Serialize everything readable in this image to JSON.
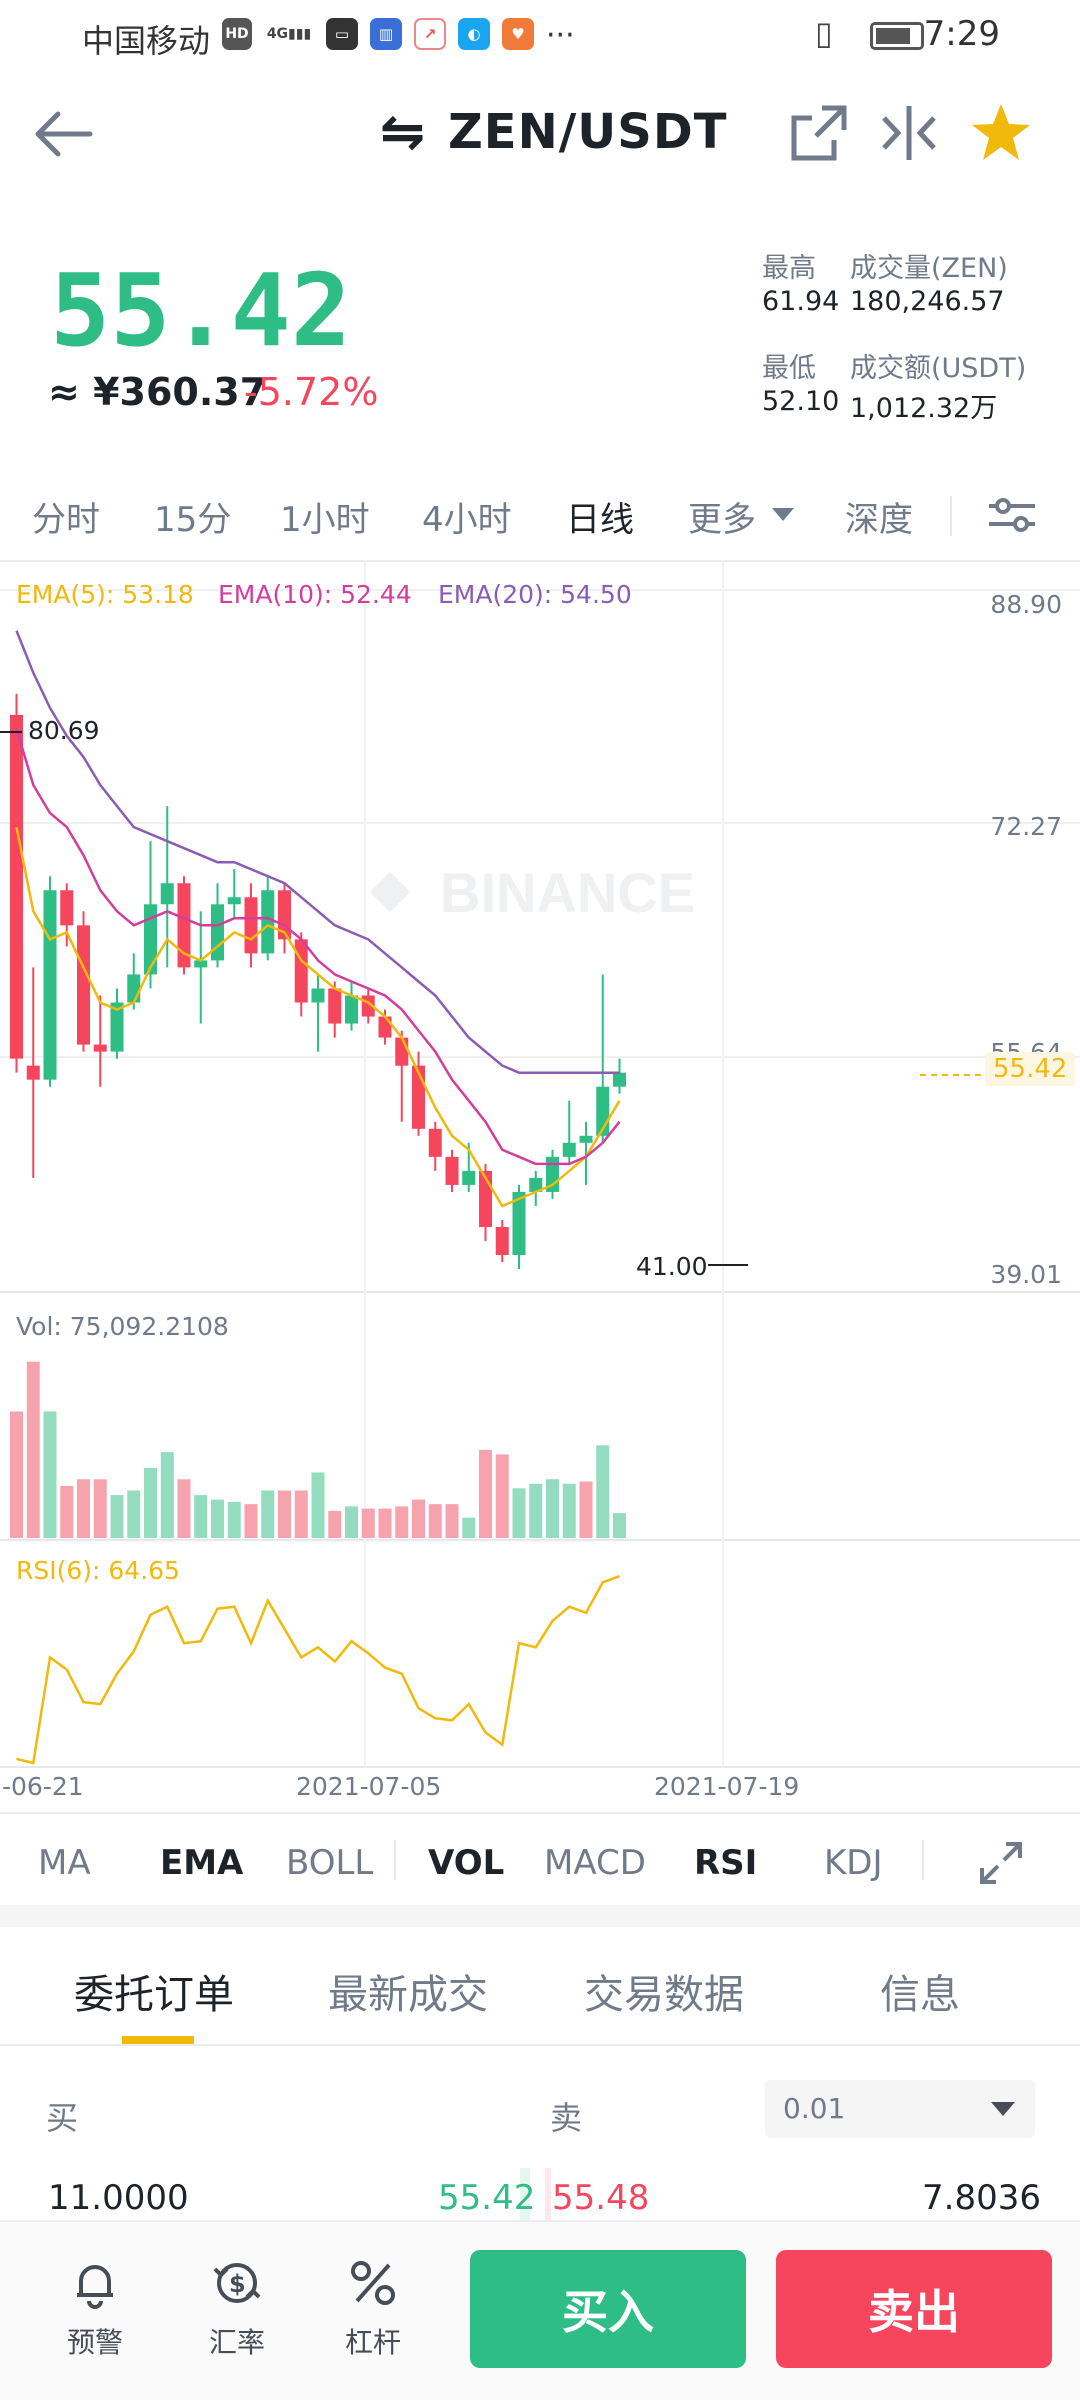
{
  "status_bar": {
    "carrier": "中国移动",
    "time": "7:29",
    "ellipsis": "···"
  },
  "header": {
    "title": "ZEN/USDT",
    "swap_glyph": "⇋"
  },
  "ticker": {
    "last_price": "55.42",
    "fiat_price": "≈ ¥360.37",
    "change_pct": "-5.72%",
    "high_label": "最高",
    "high_value": "61.94",
    "volume_label": "成交量(ZEN)",
    "volume_value": "180,246.57",
    "low_label": "最低",
    "low_value": "52.10",
    "turnover_label": "成交额(USDT)",
    "turnover_value": "1,012.32万"
  },
  "timeframes": {
    "t1": "分时",
    "t2": "15分",
    "t3": "1小时",
    "t4": "4小时",
    "t5": "日线",
    "t6": "更多",
    "t7": "深度"
  },
  "chart_labels": {
    "ema5": "EMA(5): 53.18",
    "ema10": "EMA(10): 52.44",
    "ema20": "EMA(20): 54.50",
    "y_top": "88.90",
    "y_mid": "72.27",
    "y_partial": "55.64",
    "y_bottom": "39.01",
    "current_price": "55.42",
    "max_marker": "80.69",
    "min_marker": "41.00",
    "watermark": "BINANCE",
    "vol_label": "Vol: 75,092.2108",
    "rsi_label": "RSI(6): 64.65",
    "date1": "-06-21",
    "date2": "2021-07-05",
    "date3": "2021-07-19"
  },
  "chart_data": {
    "type": "candlestick",
    "price_axis": {
      "min": 39.01,
      "max": 88.9,
      "ticks": [
        88.9,
        72.27,
        55.64,
        39.01
      ]
    },
    "x_labels": [
      "-06-21",
      "2021-07-05",
      "2021-07-19"
    ],
    "candles": [
      {
        "o": 80.0,
        "c": 55.5,
        "h": 81.5,
        "l": 54.5
      },
      {
        "o": 55.0,
        "c": 54.0,
        "h": 62.0,
        "l": 47.0
      },
      {
        "o": 54.0,
        "c": 67.5,
        "h": 68.5,
        "l": 53.5
      },
      {
        "o": 67.5,
        "c": 65.0,
        "h": 68.0,
        "l": 63.5
      },
      {
        "o": 65.0,
        "c": 56.5,
        "h": 66.0,
        "l": 56.0
      },
      {
        "o": 56.5,
        "c": 56.0,
        "h": 60.0,
        "l": 53.5
      },
      {
        "o": 56.0,
        "c": 59.5,
        "h": 60.5,
        "l": 55.5
      },
      {
        "o": 59.5,
        "c": 61.5,
        "h": 63.0,
        "l": 59.0
      },
      {
        "o": 61.5,
        "c": 66.5,
        "h": 71.0,
        "l": 60.5
      },
      {
        "o": 66.5,
        "c": 68.0,
        "h": 73.5,
        "l": 62.0
      },
      {
        "o": 68.0,
        "c": 62.0,
        "h": 68.5,
        "l": 61.5
      },
      {
        "o": 62.0,
        "c": 62.5,
        "h": 66.0,
        "l": 58.0
      },
      {
        "o": 62.5,
        "c": 66.5,
        "h": 68.0,
        "l": 62.0
      },
      {
        "o": 66.5,
        "c": 67.0,
        "h": 69.0,
        "l": 65.5
      },
      {
        "o": 67.0,
        "c": 63.0,
        "h": 68.0,
        "l": 62.0
      },
      {
        "o": 63.0,
        "c": 67.5,
        "h": 68.5,
        "l": 62.5
      },
      {
        "o": 67.5,
        "c": 64.0,
        "h": 68.0,
        "l": 63.0
      },
      {
        "o": 64.0,
        "c": 59.5,
        "h": 64.5,
        "l": 58.5
      },
      {
        "o": 59.5,
        "c": 60.5,
        "h": 61.5,
        "l": 56.0
      },
      {
        "o": 60.5,
        "c": 58.0,
        "h": 61.0,
        "l": 57.0
      },
      {
        "o": 58.0,
        "c": 60.0,
        "h": 61.0,
        "l": 57.5
      },
      {
        "o": 60.0,
        "c": 58.5,
        "h": 60.5,
        "l": 58.0
      },
      {
        "o": 58.5,
        "c": 57.0,
        "h": 59.0,
        "l": 56.5
      },
      {
        "o": 57.0,
        "c": 55.0,
        "h": 57.5,
        "l": 51.0
      },
      {
        "o": 55.0,
        "c": 50.5,
        "h": 56.0,
        "l": 50.0
      },
      {
        "o": 50.5,
        "c": 48.5,
        "h": 51.0,
        "l": 47.5
      },
      {
        "o": 48.5,
        "c": 46.5,
        "h": 49.0,
        "l": 46.0
      },
      {
        "o": 46.5,
        "c": 47.5,
        "h": 49.5,
        "l": 46.0
      },
      {
        "o": 47.5,
        "c": 43.5,
        "h": 48.0,
        "l": 42.5
      },
      {
        "o": 43.5,
        "c": 41.5,
        "h": 44.0,
        "l": 41.0
      },
      {
        "o": 41.5,
        "c": 46.0,
        "h": 46.5,
        "l": 40.5
      },
      {
        "o": 46.0,
        "c": 47.0,
        "h": 47.5,
        "l": 45.0
      },
      {
        "o": 46.0,
        "c": 48.5,
        "h": 49.0,
        "l": 45.5
      },
      {
        "o": 48.5,
        "c": 49.5,
        "h": 52.5,
        "l": 48.0
      },
      {
        "o": 49.5,
        "c": 50.0,
        "h": 51.0,
        "l": 46.5
      },
      {
        "o": 50.0,
        "c": 53.5,
        "h": 61.5,
        "l": 49.5
      },
      {
        "o": 53.5,
        "c": 54.5,
        "h": 55.5,
        "l": 53.0
      }
    ],
    "ema": [
      {
        "name": "EMA(5)",
        "color": "#f0b90b",
        "values": [
          72,
          66,
          64,
          64.5,
          62,
          59.5,
          59,
          59.5,
          62,
          64,
          63,
          62.5,
          63.5,
          64.5,
          64,
          65,
          64.5,
          62.5,
          61.5,
          60.5,
          60,
          59.5,
          58.5,
          57,
          54.5,
          52,
          50,
          49,
          47,
          45,
          45.5,
          46,
          46.5,
          47.5,
          48.5,
          50.5,
          52.5
        ]
      },
      {
        "name": "EMA(10)",
        "color": "#d33e9e",
        "values": [
          79,
          75,
          73,
          72,
          70,
          67.5,
          66,
          65,
          65.5,
          66,
          65.5,
          65,
          65,
          65.5,
          65.5,
          65.5,
          65,
          64,
          62.5,
          61.5,
          61,
          60.5,
          60,
          59,
          57.5,
          56,
          54,
          52.5,
          51,
          49,
          48.5,
          48,
          48,
          48,
          48.5,
          49.5,
          51
        ]
      },
      {
        "name": "EMA(20)",
        "color": "#8c5cb4",
        "values": [
          86,
          83,
          80.5,
          78.5,
          77,
          75,
          73.5,
          72,
          71.5,
          71,
          70.5,
          70,
          69.5,
          69.5,
          69,
          68.5,
          68,
          67,
          66,
          65,
          64.5,
          64,
          63,
          62,
          61,
          60,
          58.5,
          57,
          56,
          55,
          54.5,
          54.5,
          54.5,
          54.5,
          54.5,
          54.5,
          54.5
        ]
      }
    ],
    "volume": {
      "max": 100,
      "values": [
        56,
        78,
        56,
        23,
        26,
        26,
        19,
        21,
        31,
        38,
        26,
        19,
        17,
        16,
        15,
        21,
        21,
        21,
        29,
        12,
        14,
        13,
        13,
        14,
        17,
        15,
        15,
        9,
        39,
        37,
        22,
        24,
        26,
        24,
        25,
        41,
        11
      ],
      "up": [
        false,
        false,
        true,
        false,
        false,
        false,
        true,
        true,
        true,
        true,
        false,
        true,
        true,
        true,
        false,
        true,
        false,
        false,
        true,
        false,
        true,
        false,
        false,
        false,
        false,
        false,
        false,
        true,
        false,
        false,
        true,
        true,
        true,
        true,
        false,
        true,
        true
      ]
    },
    "rsi": {
      "min": 0,
      "max": 100,
      "values": [
        3,
        1,
        53,
        47,
        31,
        30,
        45,
        56,
        74,
        78,
        60,
        61,
        77,
        78,
        60,
        81,
        67,
        53,
        58,
        51,
        61,
        55,
        48,
        45,
        28,
        23,
        22,
        30,
        16,
        10,
        60,
        58,
        71,
        78,
        75,
        90,
        93
      ]
    }
  },
  "indicators": {
    "ma": "MA",
    "ema": "EMA",
    "boll": "BOLL",
    "vol": "VOL",
    "macd": "MACD",
    "rsi": "RSI",
    "kdj": "KDJ"
  },
  "order_tabs": {
    "orders": "委托订单",
    "trades": "最新成交",
    "data": "交易数据",
    "info": "信息"
  },
  "order_book": {
    "buy_label": "买",
    "sell_label": "卖",
    "precision": "0.01",
    "bid_qty": "11.0000",
    "bid_price": "55.42",
    "ask_price": "55.48",
    "ask_qty": "7.8036"
  },
  "bottom_nav": {
    "alert": "预警",
    "rate": "汇率",
    "leverage": "杠杆",
    "buy": "买入",
    "sell": "卖出"
  },
  "colors": {
    "up": "#2ebd85",
    "down": "#f6465d",
    "accent": "#f0b90b"
  }
}
